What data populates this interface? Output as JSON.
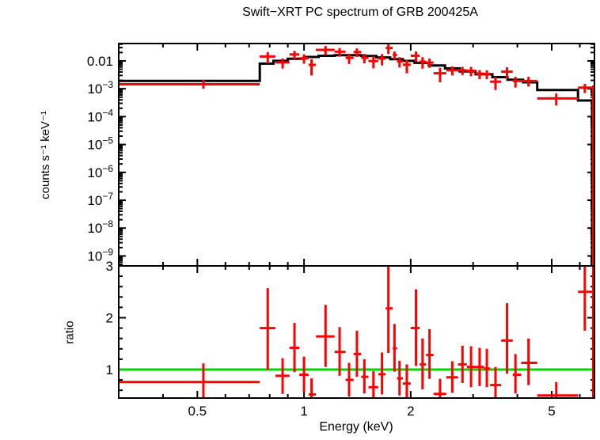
{
  "chart_data": [
    {
      "type": "scatter",
      "panel": "spectrum",
      "title": "Swift−XRT PC spectrum of GRB 200425A",
      "ylabel": "counts s⁻¹ keV⁻¹",
      "xscale": "log",
      "yscale": "log",
      "xlim": [
        0.3,
        6.6
      ],
      "ylim": [
        4.4e-10,
        0.042
      ],
      "grid": false,
      "legend": false,
      "x_ticks_major": [
        {
          "v": 0.5,
          "label": "0.5"
        },
        {
          "v": 1,
          "label": "1"
        },
        {
          "v": 2,
          "label": "2"
        },
        {
          "v": 5,
          "label": "5"
        }
      ],
      "x_ticks_minor": [
        0.4,
        0.6,
        0.7,
        0.8,
        0.9,
        3,
        4,
        6
      ],
      "y_ticks_major": [
        {
          "v": 0.01,
          "label": "0.01"
        },
        {
          "v": 0.001,
          "base": "10",
          "exp": "−3"
        },
        {
          "v": 0.0001,
          "base": "10",
          "exp": "−4"
        },
        {
          "v": 1e-05,
          "base": "10",
          "exp": "−5"
        },
        {
          "v": 1e-06,
          "base": "10",
          "exp": "−6"
        },
        {
          "v": 1e-07,
          "base": "10",
          "exp": "−7"
        },
        {
          "v": 1e-08,
          "base": "10",
          "exp": "−8"
        },
        {
          "v": 1e-09,
          "base": "10",
          "exp": "−9"
        }
      ],
      "colors": {
        "data": "#ff0000",
        "model": "#000000"
      },
      "model_steps": [
        [
          0.3,
          0.75,
          0.0019
        ],
        [
          0.75,
          0.82,
          0.008
        ],
        [
          0.82,
          0.9,
          0.01
        ],
        [
          0.9,
          1.0,
          0.012
        ],
        [
          1.0,
          1.1,
          0.0138
        ],
        [
          1.1,
          1.22,
          0.0152
        ],
        [
          1.22,
          1.45,
          0.016
        ],
        [
          1.45,
          1.6,
          0.015
        ],
        [
          1.6,
          1.75,
          0.0133
        ],
        [
          1.75,
          1.9,
          0.0116
        ],
        [
          1.9,
          2.05,
          0.01
        ],
        [
          2.05,
          2.25,
          0.0085
        ],
        [
          2.25,
          2.5,
          0.0068
        ],
        [
          2.5,
          2.75,
          0.0054
        ],
        [
          2.75,
          3.05,
          0.0042
        ],
        [
          3.05,
          3.4,
          0.0033
        ],
        [
          3.4,
          3.75,
          0.0026
        ],
        [
          3.75,
          4.15,
          0.0021
        ],
        [
          4.15,
          4.55,
          0.0017
        ],
        [
          4.55,
          5.93,
          0.0009
        ],
        [
          5.93,
          6.5,
          0.00038
        ]
      ],
      "points_format": [
        "energy_keV",
        "bin_lo",
        "bin_hi",
        "counts",
        "err_lo_bound",
        "err_hi_bound"
      ],
      "points": [
        [
          0.52,
          0.3,
          0.75,
          0.00145,
          0.001,
          0.0021
        ],
        [
          0.79,
          0.75,
          0.83,
          0.0144,
          0.008,
          0.0206
        ],
        [
          0.87,
          0.83,
          0.91,
          0.0088,
          0.0053,
          0.0122
        ],
        [
          0.94,
          0.91,
          0.97,
          0.017,
          0.0114,
          0.0228
        ],
        [
          1.0,
          0.97,
          1.03,
          0.0124,
          0.0079,
          0.0173
        ],
        [
          1.05,
          1.03,
          1.08,
          0.0072,
          0.003,
          0.0115
        ],
        [
          1.15,
          1.08,
          1.22,
          0.0249,
          0.016,
          0.0342
        ],
        [
          1.26,
          1.22,
          1.31,
          0.0214,
          0.0141,
          0.0291
        ],
        [
          1.34,
          1.31,
          1.38,
          0.0128,
          0.0077,
          0.0181
        ],
        [
          1.41,
          1.38,
          1.45,
          0.0208,
          0.0138,
          0.028
        ],
        [
          1.48,
          1.45,
          1.52,
          0.0129,
          0.0081,
          0.018
        ],
        [
          1.57,
          1.52,
          1.62,
          0.0099,
          0.0054,
          0.0146
        ],
        [
          1.66,
          1.62,
          1.7,
          0.0121,
          0.0069,
          0.0177
        ],
        [
          1.73,
          1.7,
          1.78,
          0.029,
          0.0176,
          0.0399
        ],
        [
          1.8,
          1.78,
          1.83,
          0.0164,
          0.0111,
          0.0218
        ],
        [
          1.86,
          1.83,
          1.9,
          0.0096,
          0.0058,
          0.0136
        ],
        [
          1.95,
          1.9,
          2.0,
          0.0073,
          0.0036,
          0.011
        ],
        [
          2.07,
          2.0,
          2.12,
          0.0153,
          0.0091,
          0.0217
        ],
        [
          2.16,
          2.12,
          2.21,
          0.0094,
          0.0053,
          0.0136
        ],
        [
          2.26,
          2.21,
          2.32,
          0.0087,
          0.0056,
          0.0121
        ],
        [
          2.42,
          2.32,
          2.52,
          0.0036,
          0.0017,
          0.0056
        ],
        [
          2.62,
          2.52,
          2.72,
          0.0046,
          0.003,
          0.0063
        ],
        [
          2.8,
          2.72,
          2.88,
          0.0046,
          0.0031,
          0.0061
        ],
        [
          2.96,
          2.88,
          3.05,
          0.0044,
          0.0028,
          0.0061
        ],
        [
          3.13,
          3.05,
          3.22,
          0.0035,
          0.0022,
          0.0047
        ],
        [
          3.28,
          3.22,
          3.35,
          0.0034,
          0.0022,
          0.0046
        ],
        [
          3.47,
          3.35,
          3.6,
          0.0018,
          0.0009,
          0.0027
        ],
        [
          3.74,
          3.6,
          3.88,
          0.0041,
          0.0024,
          0.0059
        ],
        [
          3.95,
          3.88,
          4.1,
          0.0019,
          0.0011,
          0.0027
        ],
        [
          4.3,
          4.1,
          4.55,
          0.0019,
          0.0012,
          0.0027
        ],
        [
          5.15,
          4.55,
          5.93,
          0.00045,
          0.00025,
          0.00068
        ],
        [
          6.2,
          5.93,
          6.5,
          0.0011,
          0.0007,
          0.0015
        ],
        [
          6.55,
          6.5,
          6.6,
          0.0009,
          1e-10,
          0.00133
        ]
      ]
    },
    {
      "type": "scatter",
      "panel": "ratio",
      "ylabel": "ratio",
      "xlabel": "Energy (keV)",
      "xscale": "log",
      "yscale": "linear",
      "xlim": [
        0.3,
        6.6
      ],
      "ylim": [
        0.45,
        3.0
      ],
      "grid": false,
      "legend": false,
      "reference_line": 1,
      "x_ticks_major": [
        {
          "v": 0.5,
          "label": "0.5"
        },
        {
          "v": 1,
          "label": "1"
        },
        {
          "v": 2,
          "label": "2"
        },
        {
          "v": 5,
          "label": "5"
        }
      ],
      "x_ticks_minor": [
        0.4,
        0.6,
        0.7,
        0.8,
        0.9,
        3,
        4,
        6
      ],
      "y_ticks_major": [
        {
          "v": 1,
          "label": "1"
        },
        {
          "v": 2,
          "label": "2"
        },
        {
          "v": 3,
          "label": "3"
        }
      ],
      "y_ticks_minor": [
        0.6,
        0.8,
        1.2,
        1.4,
        1.6,
        1.8,
        2.2,
        2.4,
        2.6,
        2.8
      ],
      "colors": {
        "data": "#ff0000",
        "reference": "#00d500"
      },
      "points_format": [
        "energy_keV",
        "bin_lo",
        "bin_hi",
        "ratio",
        "err_lo_bound",
        "err_hi_bound"
      ],
      "points": [
        [
          0.52,
          0.3,
          0.75,
          0.76,
          0.39,
          1.12
        ],
        [
          0.79,
          0.75,
          0.83,
          1.8,
          1.0,
          2.57
        ],
        [
          0.87,
          0.83,
          0.91,
          0.88,
          0.53,
          1.22
        ],
        [
          0.94,
          0.91,
          0.97,
          1.42,
          0.95,
          1.9
        ],
        [
          1.0,
          0.97,
          1.03,
          0.9,
          0.57,
          1.25
        ],
        [
          1.05,
          1.03,
          1.08,
          0.52,
          0.22,
          0.83
        ],
        [
          1.15,
          1.08,
          1.22,
          1.64,
          1.05,
          2.25
        ],
        [
          1.26,
          1.22,
          1.31,
          1.34,
          0.88,
          1.82
        ],
        [
          1.34,
          1.31,
          1.38,
          0.8,
          0.48,
          1.13
        ],
        [
          1.41,
          1.38,
          1.45,
          1.3,
          0.86,
          1.75
        ],
        [
          1.48,
          1.45,
          1.52,
          0.86,
          0.54,
          1.2
        ],
        [
          1.57,
          1.52,
          1.62,
          0.66,
          0.36,
          0.97
        ],
        [
          1.66,
          1.62,
          1.7,
          0.91,
          0.52,
          1.33
        ],
        [
          1.73,
          1.7,
          1.78,
          2.18,
          1.32,
          3.0
        ],
        [
          1.8,
          1.78,
          1.83,
          1.41,
          0.96,
          1.88
        ],
        [
          1.86,
          1.83,
          1.9,
          0.83,
          0.5,
          1.17
        ],
        [
          1.95,
          1.9,
          2.0,
          0.73,
          0.36,
          1.1
        ],
        [
          2.07,
          2.0,
          2.12,
          1.8,
          1.07,
          2.55
        ],
        [
          2.16,
          2.12,
          2.21,
          1.1,
          0.62,
          1.6
        ],
        [
          2.26,
          2.21,
          2.32,
          1.28,
          0.82,
          1.78
        ],
        [
          2.42,
          2.32,
          2.52,
          0.53,
          0.25,
          0.82
        ],
        [
          2.62,
          2.52,
          2.72,
          0.85,
          0.55,
          1.16
        ],
        [
          2.8,
          2.72,
          2.88,
          1.1,
          0.74,
          1.46
        ],
        [
          2.96,
          2.88,
          3.05,
          1.05,
          0.66,
          1.45
        ],
        [
          3.13,
          3.05,
          3.22,
          1.05,
          0.68,
          1.42
        ],
        [
          3.28,
          3.22,
          3.35,
          1.02,
          0.66,
          1.4
        ],
        [
          3.47,
          3.35,
          3.6,
          0.7,
          0.36,
          1.05
        ],
        [
          3.74,
          3.6,
          3.88,
          1.56,
          0.92,
          2.28
        ],
        [
          3.95,
          3.88,
          4.1,
          0.9,
          0.54,
          1.3
        ],
        [
          4.3,
          4.1,
          4.55,
          1.13,
          0.7,
          1.6
        ],
        [
          5.15,
          4.55,
          5.93,
          0.5,
          0.28,
          0.76
        ],
        [
          6.2,
          5.93,
          6.5,
          2.5,
          1.75,
          3.05
        ],
        [
          6.55,
          6.5,
          6.6,
          2.9,
          0.1,
          3.05
        ]
      ]
    }
  ]
}
